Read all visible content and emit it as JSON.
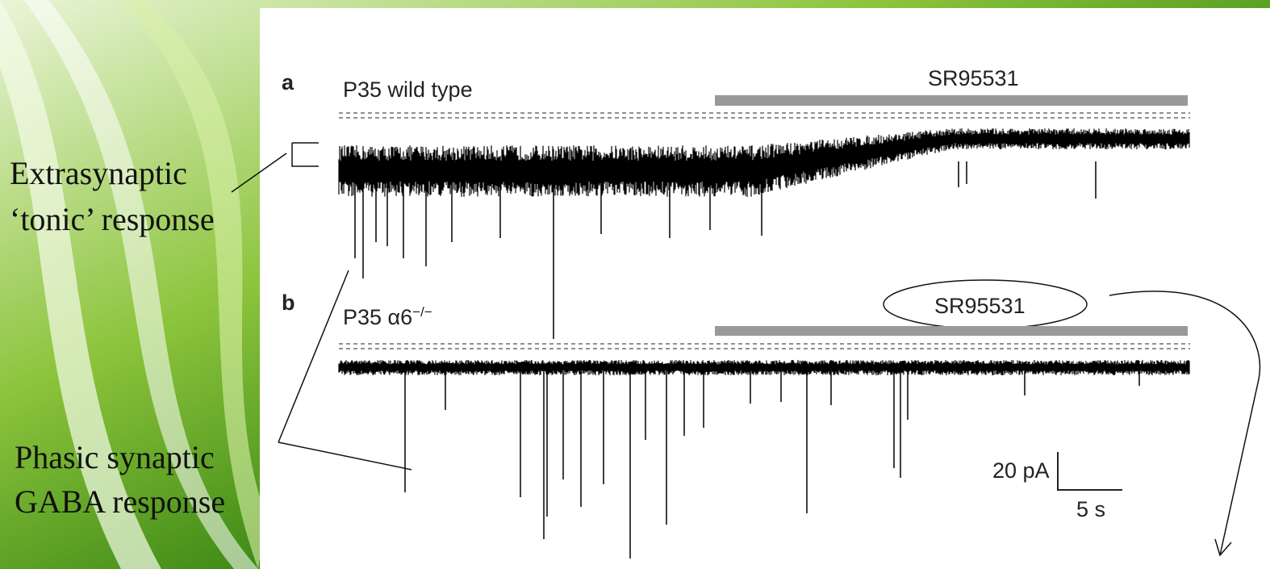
{
  "slide": {
    "tonic_label": [
      "Extrasynaptic",
      "‘tonic’ response"
    ],
    "phasic_label": [
      "Phasic synaptic",
      "GABA response"
    ]
  },
  "figure": {
    "panel_a": {
      "letter": "a",
      "title": "P35 wild type",
      "drug": "SR95531"
    },
    "panel_b": {
      "letter": "b",
      "title": "P35 α6",
      "title_superscript": "−/−",
      "drug": "SR95531"
    },
    "scale_bar": {
      "current": "20 pA",
      "time": "5 s"
    }
  }
}
